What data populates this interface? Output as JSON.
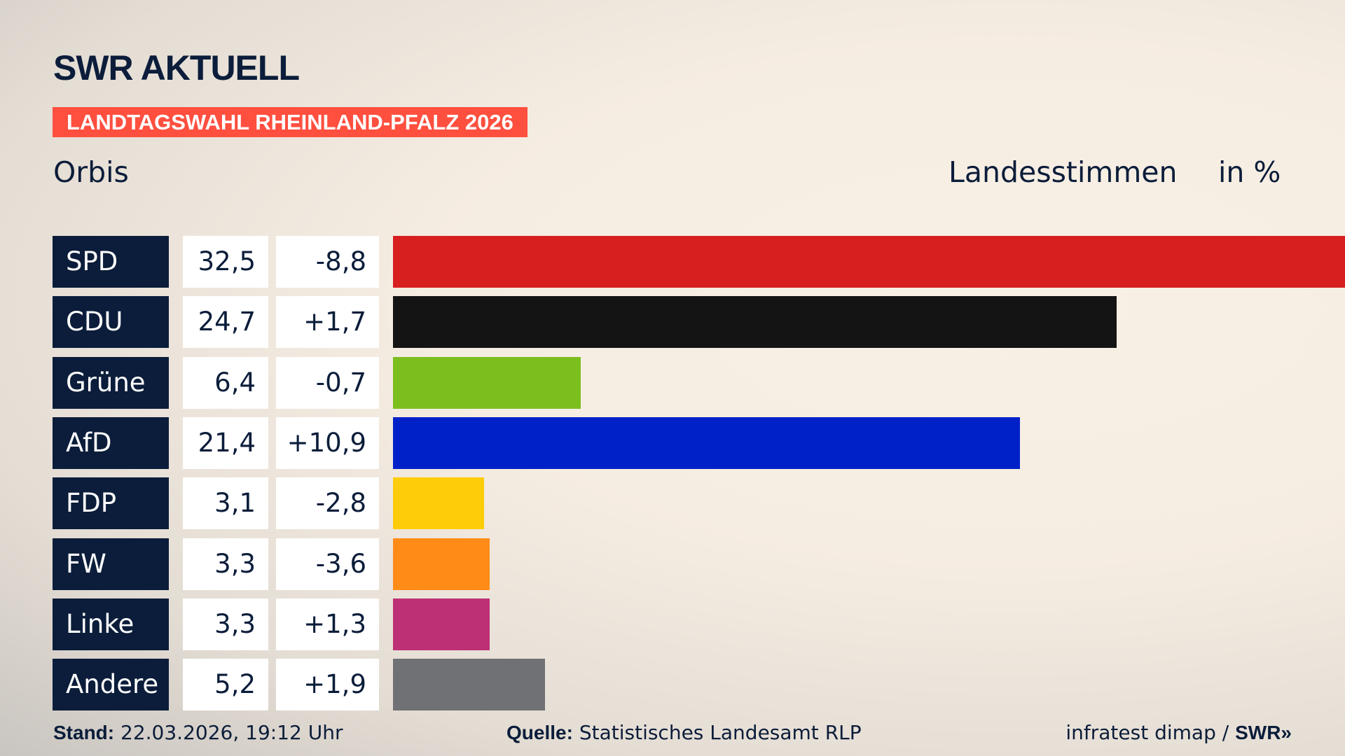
{
  "header": {
    "logo": "SWR AKTUELL",
    "banner": "LANDTAGSWAHL RHEINLAND-PFALZ 2026",
    "location": "Orbis",
    "vote_type": "Landesstimmen",
    "unit": "in %"
  },
  "colors": {
    "banner": "#ff4f3f",
    "label_bg": "#0b1d3a"
  },
  "chart_data": {
    "type": "bar",
    "orientation": "horizontal",
    "categories": [
      "SPD",
      "CDU",
      "Grüne",
      "AfD",
      "FDP",
      "FW",
      "Linke",
      "Andere"
    ],
    "values": [
      32.5,
      24.7,
      6.4,
      21.4,
      3.1,
      3.3,
      3.3,
      5.2
    ],
    "value_labels": [
      "32,5",
      "24,7",
      "6,4",
      "21,4",
      "3,1",
      "3,3",
      "3,3",
      "5,2"
    ],
    "diff_labels": [
      "-8,8",
      "+1,7",
      "-0,7",
      "+10,9",
      "-2,8",
      "-3,6",
      "+1,3",
      "+1,9"
    ],
    "colors": [
      "#d71f1f",
      "#141414",
      "#7bbe1e",
      "#0021c8",
      "#ffcc0a",
      "#ff8c17",
      "#bd3075",
      "#707174"
    ],
    "xlim": [
      0,
      32.5
    ]
  },
  "footer": {
    "stand_label": "Stand:",
    "stand_value": "22.03.2026, 19:12 Uhr",
    "source_label": "Quelle:",
    "source_value": "Statistisches Landesamt RLP",
    "credit": "infratest dimap / ",
    "credit_logo": "SWR"
  }
}
